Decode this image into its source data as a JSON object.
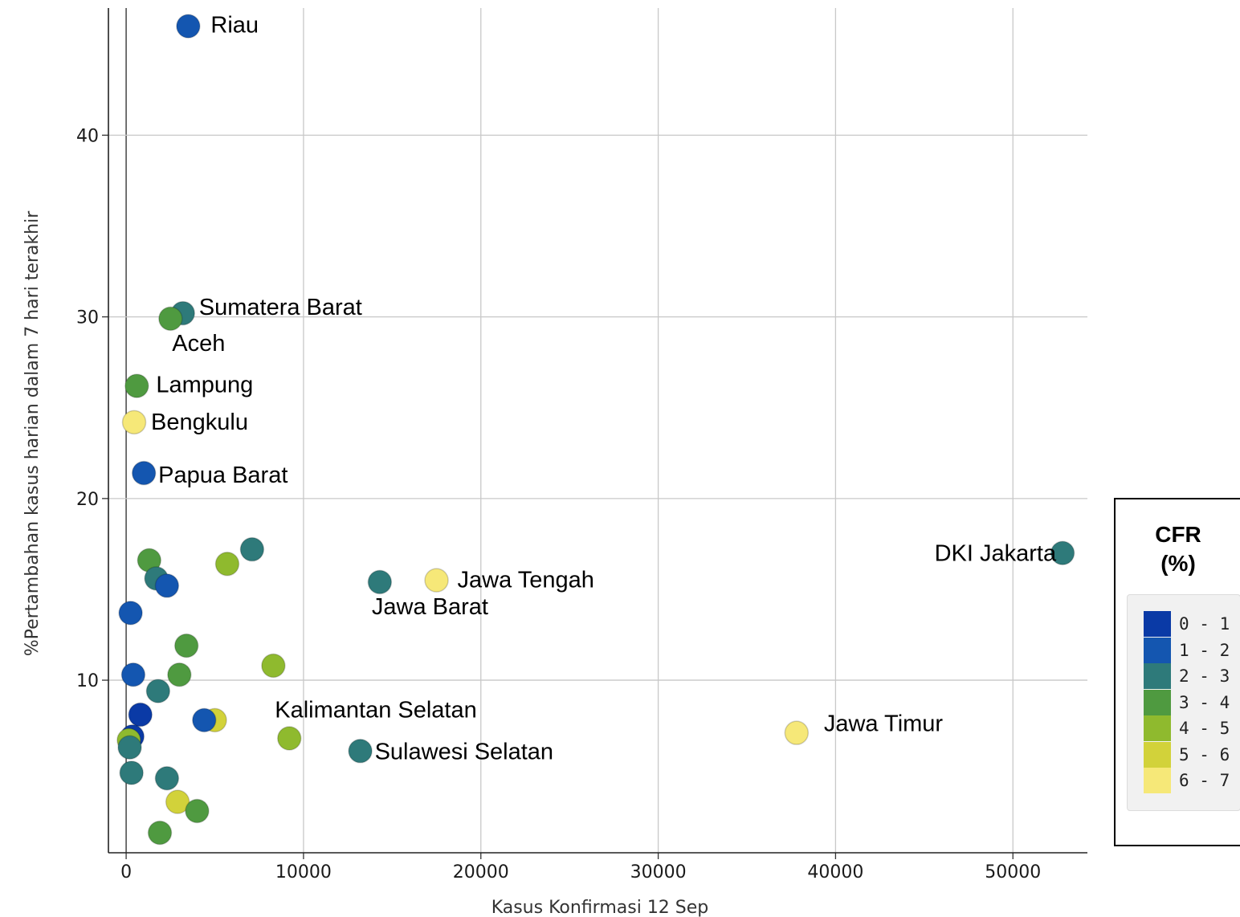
{
  "chart_data": {
    "type": "scatter",
    "title": "",
    "xlabel": "Kasus Konfirmasi 12 Sep",
    "ylabel": "%Pertambahan kasus harian dalam 7 hari terakhir",
    "xlim": [
      -1000,
      54200
    ],
    "ylim": [
      0.5,
      47
    ],
    "x_ticks": [
      0,
      10000,
      20000,
      30000,
      40000,
      50000
    ],
    "y_ticks": [
      10,
      20,
      30,
      40
    ],
    "grid": true,
    "legend_position": "right",
    "legend": {
      "title_line1": "CFR",
      "title_line2": "(%)",
      "items": [
        {
          "label": "0 - 1",
          "color": "#0a3aa6"
        },
        {
          "label": "1 - 2",
          "color": "#1456b0"
        },
        {
          "label": "2 - 3",
          "color": "#2e7a7a"
        },
        {
          "label": "3 - 4",
          "color": "#4f9a40"
        },
        {
          "label": "4 - 5",
          "color": "#8fba2e"
        },
        {
          "label": "5 - 6",
          "color": "#d2d23a"
        },
        {
          "label": "6 - 7",
          "color": "#f6e878"
        }
      ]
    },
    "points": [
      {
        "x": 3500,
        "y": 46.0,
        "cfr": "1 - 2",
        "label": "Riau"
      },
      {
        "x": 3200,
        "y": 30.2,
        "cfr": "2 - 3",
        "label": "Sumatera Barat"
      },
      {
        "x": 2500,
        "y": 29.9,
        "cfr": "3 - 4",
        "label": "Aceh"
      },
      {
        "x": 600,
        "y": 26.2,
        "cfr": "3 - 4",
        "label": "Lampung"
      },
      {
        "x": 450,
        "y": 24.2,
        "cfr": "6 - 7",
        "label": "Bengkulu"
      },
      {
        "x": 1000,
        "y": 21.4,
        "cfr": "1 - 2",
        "label": "Papua Barat"
      },
      {
        "x": 52800,
        "y": 17.0,
        "cfr": "2 - 3",
        "label": "DKI Jakarta"
      },
      {
        "x": 17500,
        "y": 15.5,
        "cfr": "6 - 7",
        "label": "Jawa Tengah"
      },
      {
        "x": 14300,
        "y": 15.4,
        "cfr": "2 - 3",
        "label": "Jawa Barat"
      },
      {
        "x": 37800,
        "y": 7.1,
        "cfr": "6 - 7",
        "label": "Jawa Timur"
      },
      {
        "x": 9200,
        "y": 6.8,
        "cfr": "4 - 5",
        "label": "Kalimantan Selatan"
      },
      {
        "x": 13200,
        "y": 6.1,
        "cfr": "2 - 3",
        "label": "Sulawesi Selatan"
      },
      {
        "x": 7100,
        "y": 17.2,
        "cfr": "2 - 3",
        "label": ""
      },
      {
        "x": 5700,
        "y": 16.4,
        "cfr": "4 - 5",
        "label": ""
      },
      {
        "x": 1300,
        "y": 16.6,
        "cfr": "3 - 4",
        "label": ""
      },
      {
        "x": 1700,
        "y": 15.6,
        "cfr": "2 - 3",
        "label": ""
      },
      {
        "x": 2300,
        "y": 15.2,
        "cfr": "1 - 2",
        "label": ""
      },
      {
        "x": 250,
        "y": 13.7,
        "cfr": "1 - 2",
        "label": ""
      },
      {
        "x": 3400,
        "y": 11.9,
        "cfr": "3 - 4",
        "label": ""
      },
      {
        "x": 8300,
        "y": 10.8,
        "cfr": "4 - 5",
        "label": ""
      },
      {
        "x": 400,
        "y": 10.3,
        "cfr": "1 - 2",
        "label": ""
      },
      {
        "x": 3000,
        "y": 10.3,
        "cfr": "3 - 4",
        "label": ""
      },
      {
        "x": 1800,
        "y": 9.4,
        "cfr": "2 - 3",
        "label": ""
      },
      {
        "x": 800,
        "y": 8.1,
        "cfr": "0 - 1",
        "label": ""
      },
      {
        "x": 5000,
        "y": 7.8,
        "cfr": "5 - 6",
        "label": ""
      },
      {
        "x": 4400,
        "y": 7.8,
        "cfr": "1 - 2",
        "label": ""
      },
      {
        "x": 350,
        "y": 6.9,
        "cfr": "0 - 1",
        "label": ""
      },
      {
        "x": 150,
        "y": 6.7,
        "cfr": "4 - 5",
        "label": ""
      },
      {
        "x": 200,
        "y": 6.3,
        "cfr": "2 - 3",
        "label": ""
      },
      {
        "x": 300,
        "y": 4.9,
        "cfr": "2 - 3",
        "label": ""
      },
      {
        "x": 2300,
        "y": 4.6,
        "cfr": "2 - 3",
        "label": ""
      },
      {
        "x": 2900,
        "y": 3.3,
        "cfr": "5 - 6",
        "label": ""
      },
      {
        "x": 4000,
        "y": 2.8,
        "cfr": "3 - 4",
        "label": ""
      },
      {
        "x": 1900,
        "y": 1.6,
        "cfr": "3 - 4",
        "label": ""
      }
    ]
  }
}
